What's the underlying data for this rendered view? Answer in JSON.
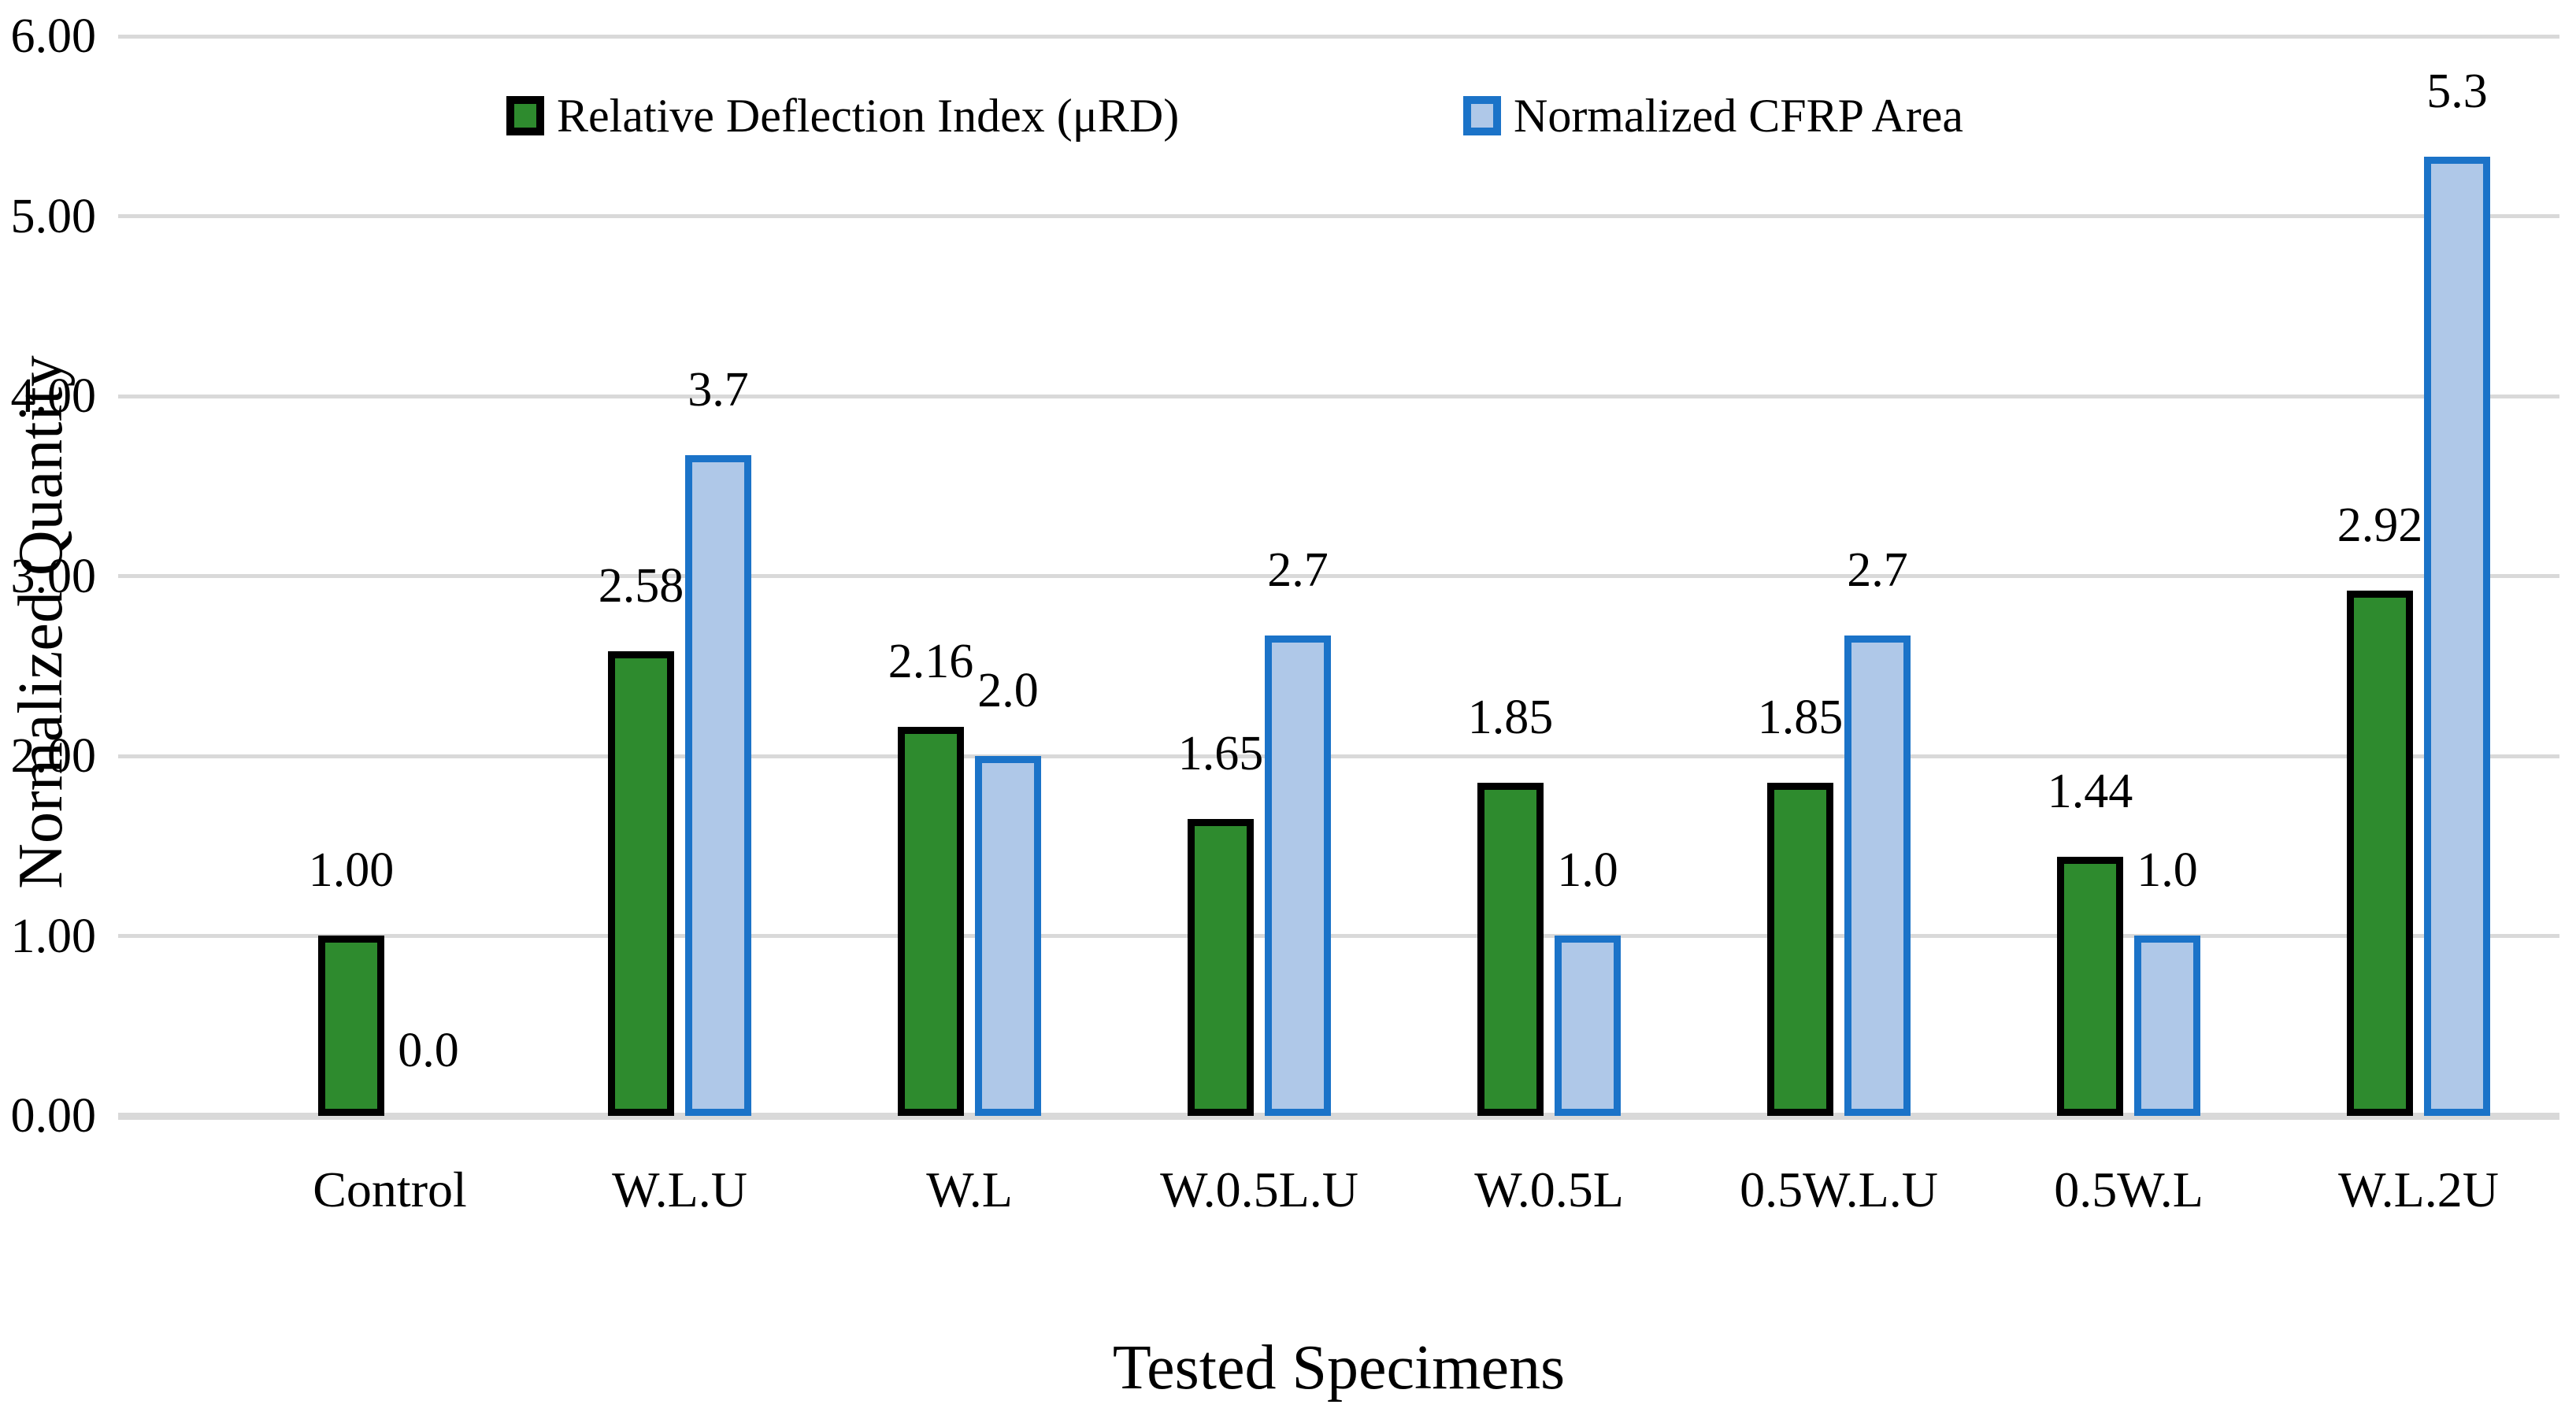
{
  "chart_data": {
    "type": "bar",
    "categories": [
      "Control",
      "W.L.U",
      "W.L",
      "W.0.5L.U",
      "W.0.5L",
      "0.5W.L.U",
      "0.5W.L",
      "W.L.2U"
    ],
    "series": [
      {
        "name": "Relative Deflection Index (μRD)",
        "values": [
          1.0,
          2.58,
          2.16,
          1.65,
          1.85,
          1.85,
          1.44,
          2.92
        ],
        "labels": [
          "1.00",
          "2.58",
          "2.16",
          "1.65",
          "1.85",
          "1.85",
          "1.44",
          "2.92"
        ],
        "fill": "#2E8B2E",
        "border": "#000000"
      },
      {
        "name": "Normalized CFRP Area",
        "values": [
          0.0,
          3.67,
          2.0,
          2.67,
          1.0,
          2.67,
          1.0,
          5.33
        ],
        "labels": [
          "0.0",
          "3.7",
          "2.0",
          "2.7",
          "1.0",
          "2.7",
          "1.0",
          "5.3"
        ],
        "fill": "#AFC8E8",
        "border": "#1B73C8"
      }
    ],
    "xlabel": "Tested Specimens",
    "ylabel": "Normalized Quantity",
    "ylim": [
      0,
      6
    ],
    "yticks": [
      "0.00",
      "1.00",
      "2.00",
      "3.00",
      "4.00",
      "5.00",
      "6.00"
    ],
    "grid": true,
    "legend_position": "top"
  },
  "colors": {
    "background": "#FFFFFF",
    "gridline": "#D9D9D9",
    "text": "#000000"
  }
}
